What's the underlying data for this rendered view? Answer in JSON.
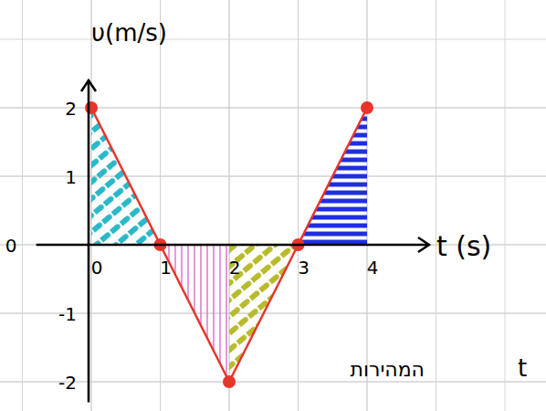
{
  "chart_data": {
    "type": "line",
    "y_label": "υ(m/s)",
    "x_label": "t (s)",
    "annotations": [
      "המהירות",
      "t"
    ],
    "x": [
      0,
      1,
      2,
      3,
      4
    ],
    "series": [
      {
        "color": "#e8352b",
        "marker": "circle",
        "values": [
          2,
          0,
          -2,
          0,
          2
        ],
        "colors": [
          "#2bb8c9",
          "#de7fcf",
          "#b8bb2c",
          "#1f2fe0"
        ]
      }
    ],
    "xlim": [
      -0.8,
      4.9
    ],
    "xticks": [
      0,
      1,
      2,
      3,
      4
    ],
    "ylim": [
      -2.3,
      2.4
    ],
    "yticks": [
      -2,
      -1,
      0,
      1,
      2
    ],
    "grid": true
  }
}
